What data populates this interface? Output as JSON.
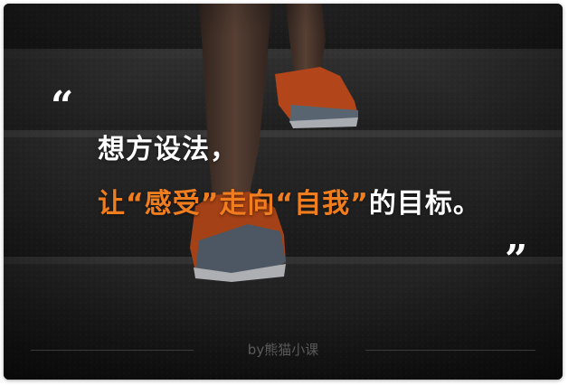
{
  "quote": {
    "open_mark": "“",
    "close_mark": "”",
    "line1": "想方设法，",
    "line2_part1": "让“感受”走向“自我”",
    "line2_part2": "的目标。"
  },
  "credit": "by熊猫小课",
  "colors": {
    "highlight": "#f07d1e",
    "text": "#ffffff",
    "background": "#252525"
  }
}
